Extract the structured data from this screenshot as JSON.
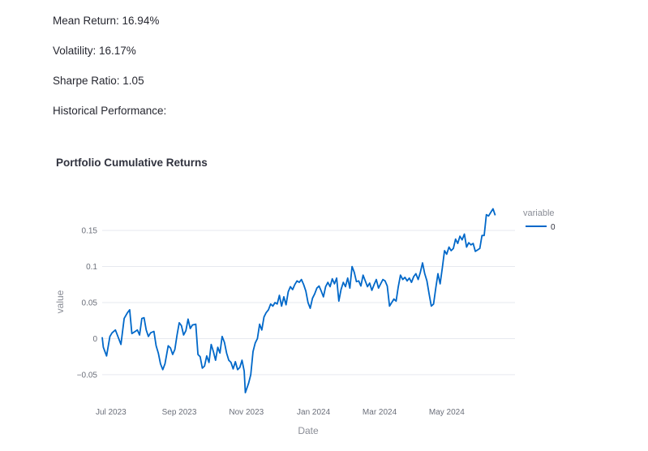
{
  "metrics": {
    "mean_return": "Mean Return: 16.94%",
    "volatility": "Volatility: 16.17%",
    "sharpe": "Sharpe Ratio: 1.05",
    "historical_label": "Historical Performance:"
  },
  "colors": {
    "series": "#0068c9",
    "grid": "#e6e9ef"
  },
  "chart_data": {
    "type": "line",
    "title": "Portfolio Cumulative Returns",
    "xlabel": "Date",
    "ylabel": "value",
    "ylim": [
      -0.085,
      0.185
    ],
    "xlim": [
      "2023-06-23",
      "2024-07-02"
    ],
    "grid": true,
    "legend_title": "variable",
    "legend_position": "top-right",
    "x_ticks": [
      {
        "date": "2023-07-01",
        "label": "Jul 2023"
      },
      {
        "date": "2023-09-01",
        "label": "Sep 2023"
      },
      {
        "date": "2023-11-01",
        "label": "Nov 2023"
      },
      {
        "date": "2024-01-01",
        "label": "Jan 2024"
      },
      {
        "date": "2024-03-01",
        "label": "Mar 2024"
      },
      {
        "date": "2024-05-01",
        "label": "May 2024"
      }
    ],
    "y_ticks": [
      {
        "value": 0.15,
        "label": "0.15"
      },
      {
        "value": 0.1,
        "label": "0.1"
      },
      {
        "value": 0.05,
        "label": "0.05"
      },
      {
        "value": 0,
        "label": "0"
      },
      {
        "value": -0.05,
        "label": "−0.05"
      }
    ],
    "series": [
      {
        "name": "0",
        "points": [
          [
            "2023-06-23",
            0.002
          ],
          [
            "2023-06-24",
            -0.012
          ],
          [
            "2023-06-27",
            -0.024
          ],
          [
            "2023-06-30",
            0.003
          ],
          [
            "2023-07-02",
            0.008
          ],
          [
            "2023-07-05",
            0.012
          ],
          [
            "2023-07-08",
            0.0
          ],
          [
            "2023-07-10",
            -0.008
          ],
          [
            "2023-07-13",
            0.028
          ],
          [
            "2023-07-16",
            0.036
          ],
          [
            "2023-07-18",
            0.04
          ],
          [
            "2023-07-20",
            0.007
          ],
          [
            "2023-07-23",
            0.01
          ],
          [
            "2023-07-25",
            0.012
          ],
          [
            "2023-07-27",
            0.005
          ],
          [
            "2023-07-29",
            0.028
          ],
          [
            "2023-07-31",
            0.029
          ],
          [
            "2023-08-02",
            0.012
          ],
          [
            "2023-08-04",
            0.003
          ],
          [
            "2023-08-06",
            0.008
          ],
          [
            "2023-08-09",
            0.01
          ],
          [
            "2023-08-11",
            -0.01
          ],
          [
            "2023-08-13",
            -0.02
          ],
          [
            "2023-08-15",
            -0.035
          ],
          [
            "2023-08-17",
            -0.043
          ],
          [
            "2023-08-19",
            -0.035
          ],
          [
            "2023-08-22",
            -0.01
          ],
          [
            "2023-08-24",
            -0.013
          ],
          [
            "2023-08-26",
            -0.022
          ],
          [
            "2023-08-28",
            -0.015
          ],
          [
            "2023-08-30",
            0.005
          ],
          [
            "2023-09-01",
            0.022
          ],
          [
            "2023-09-03",
            0.018
          ],
          [
            "2023-09-05",
            0.005
          ],
          [
            "2023-09-07",
            0.011
          ],
          [
            "2023-09-09",
            0.027
          ],
          [
            "2023-09-11",
            0.014
          ],
          [
            "2023-09-13",
            0.019
          ],
          [
            "2023-09-16",
            0.02
          ],
          [
            "2023-09-18",
            -0.022
          ],
          [
            "2023-09-20",
            -0.025
          ],
          [
            "2023-09-22",
            -0.041
          ],
          [
            "2023-09-24",
            -0.038
          ],
          [
            "2023-09-26",
            -0.024
          ],
          [
            "2023-09-28",
            -0.033
          ],
          [
            "2023-09-30",
            -0.008
          ],
          [
            "2023-10-02",
            -0.018
          ],
          [
            "2023-10-04",
            -0.03
          ],
          [
            "2023-10-06",
            -0.012
          ],
          [
            "2023-10-08",
            -0.02
          ],
          [
            "2023-10-10",
            0.003
          ],
          [
            "2023-10-12",
            -0.005
          ],
          [
            "2023-10-14",
            -0.02
          ],
          [
            "2023-10-16",
            -0.03
          ],
          [
            "2023-10-18",
            -0.033
          ],
          [
            "2023-10-20",
            -0.042
          ],
          [
            "2023-10-22",
            -0.032
          ],
          [
            "2023-10-24",
            -0.043
          ],
          [
            "2023-10-26",
            -0.04
          ],
          [
            "2023-10-28",
            -0.03
          ],
          [
            "2023-10-30",
            -0.045
          ],
          [
            "2023-10-31",
            -0.075
          ],
          [
            "2023-11-03",
            -0.062
          ],
          [
            "2023-11-05",
            -0.05
          ],
          [
            "2023-11-07",
            -0.018
          ],
          [
            "2023-11-09",
            -0.006
          ],
          [
            "2023-11-11",
            0.0
          ],
          [
            "2023-11-13",
            0.02
          ],
          [
            "2023-11-15",
            0.012
          ],
          [
            "2023-11-17",
            0.03
          ],
          [
            "2023-11-19",
            0.036
          ],
          [
            "2023-11-21",
            0.04
          ],
          [
            "2023-11-23",
            0.048
          ],
          [
            "2023-11-25",
            0.045
          ],
          [
            "2023-11-27",
            0.05
          ],
          [
            "2023-11-29",
            0.048
          ],
          [
            "2023-12-01",
            0.06
          ],
          [
            "2023-12-03",
            0.045
          ],
          [
            "2023-12-05",
            0.058
          ],
          [
            "2023-12-07",
            0.047
          ],
          [
            "2023-12-09",
            0.065
          ],
          [
            "2023-12-11",
            0.072
          ],
          [
            "2023-12-13",
            0.068
          ],
          [
            "2023-12-15",
            0.075
          ],
          [
            "2023-12-17",
            0.08
          ],
          [
            "2023-12-19",
            0.078
          ],
          [
            "2023-12-21",
            0.082
          ],
          [
            "2023-12-23",
            0.075
          ],
          [
            "2023-12-25",
            0.066
          ],
          [
            "2023-12-27",
            0.05
          ],
          [
            "2023-12-29",
            0.042
          ],
          [
            "2023-12-31",
            0.056
          ],
          [
            "2024-01-02",
            0.062
          ],
          [
            "2024-01-04",
            0.07
          ],
          [
            "2024-01-06",
            0.073
          ],
          [
            "2024-01-08",
            0.066
          ],
          [
            "2024-01-10",
            0.058
          ],
          [
            "2024-01-12",
            0.072
          ],
          [
            "2024-01-14",
            0.078
          ],
          [
            "2024-01-16",
            0.072
          ],
          [
            "2024-01-18",
            0.083
          ],
          [
            "2024-01-20",
            0.076
          ],
          [
            "2024-01-22",
            0.084
          ],
          [
            "2024-01-24",
            0.052
          ],
          [
            "2024-01-26",
            0.068
          ],
          [
            "2024-01-28",
            0.078
          ],
          [
            "2024-01-30",
            0.072
          ],
          [
            "2024-02-01",
            0.084
          ],
          [
            "2024-02-03",
            0.07
          ],
          [
            "2024-02-05",
            0.1
          ],
          [
            "2024-02-07",
            0.092
          ],
          [
            "2024-02-09",
            0.079
          ],
          [
            "2024-02-11",
            0.08
          ],
          [
            "2024-02-13",
            0.073
          ],
          [
            "2024-02-15",
            0.088
          ],
          [
            "2024-02-17",
            0.08
          ],
          [
            "2024-02-19",
            0.072
          ],
          [
            "2024-02-21",
            0.077
          ],
          [
            "2024-02-23",
            0.067
          ],
          [
            "2024-02-25",
            0.075
          ],
          [
            "2024-02-27",
            0.082
          ],
          [
            "2024-02-29",
            0.07
          ],
          [
            "2024-03-02",
            0.076
          ],
          [
            "2024-03-04",
            0.082
          ],
          [
            "2024-03-06",
            0.08
          ],
          [
            "2024-03-08",
            0.073
          ],
          [
            "2024-03-10",
            0.045
          ],
          [
            "2024-03-12",
            0.05
          ],
          [
            "2024-03-14",
            0.055
          ],
          [
            "2024-03-16",
            0.052
          ],
          [
            "2024-03-18",
            0.072
          ],
          [
            "2024-03-20",
            0.088
          ],
          [
            "2024-03-22",
            0.082
          ],
          [
            "2024-03-24",
            0.085
          ],
          [
            "2024-03-26",
            0.08
          ],
          [
            "2024-03-28",
            0.084
          ],
          [
            "2024-03-30",
            0.078
          ],
          [
            "2024-04-01",
            0.086
          ],
          [
            "2024-04-03",
            0.09
          ],
          [
            "2024-04-05",
            0.082
          ],
          [
            "2024-04-07",
            0.092
          ],
          [
            "2024-04-09",
            0.105
          ],
          [
            "2024-04-11",
            0.09
          ],
          [
            "2024-04-13",
            0.08
          ],
          [
            "2024-04-15",
            0.062
          ],
          [
            "2024-04-17",
            0.045
          ],
          [
            "2024-04-19",
            0.048
          ],
          [
            "2024-04-21",
            0.07
          ],
          [
            "2024-04-23",
            0.09
          ],
          [
            "2024-04-25",
            0.076
          ],
          [
            "2024-04-27",
            0.098
          ],
          [
            "2024-04-29",
            0.122
          ],
          [
            "2024-05-01",
            0.117
          ],
          [
            "2024-05-03",
            0.127
          ],
          [
            "2024-05-05",
            0.122
          ],
          [
            "2024-05-07",
            0.125
          ],
          [
            "2024-05-09",
            0.138
          ],
          [
            "2024-05-11",
            0.132
          ],
          [
            "2024-05-13",
            0.142
          ],
          [
            "2024-05-15",
            0.137
          ],
          [
            "2024-05-17",
            0.145
          ],
          [
            "2024-05-19",
            0.127
          ],
          [
            "2024-05-21",
            0.133
          ],
          [
            "2024-05-23",
            0.13
          ],
          [
            "2024-05-25",
            0.132
          ],
          [
            "2024-05-27",
            0.121
          ],
          [
            "2024-05-29",
            0.123
          ],
          [
            "2024-05-31",
            0.125
          ],
          [
            "2024-06-02",
            0.143
          ],
          [
            "2024-06-04",
            0.143
          ],
          [
            "2024-06-06",
            0.172
          ],
          [
            "2024-06-08",
            0.17
          ],
          [
            "2024-06-10",
            0.175
          ],
          [
            "2024-06-12",
            0.18
          ],
          [
            "2024-06-14",
            0.171
          ]
        ]
      }
    ]
  }
}
